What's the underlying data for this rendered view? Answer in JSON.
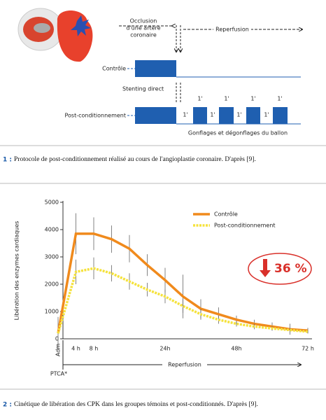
{
  "figure1": {
    "occlusion": [
      "Occlusion",
      "d'une artère",
      "coronaire"
    ],
    "reperfusion": "Reperfusion",
    "control": "Contrôle",
    "stenting": "Stenting direct",
    "postconditioning": "Post-conditionnement",
    "inflation_labels": [
      "1'",
      "1'",
      "1'",
      "1'"
    ],
    "deflation_labels": [
      "1'",
      "1'",
      "1'",
      "1'"
    ],
    "balloon": "Gonflages et dégonflages du ballon",
    "caption_label": "1 :",
    "caption": "Protocole de post-conditionnement réalisé au cours de l'angioplastie coronaire. D'après [9]."
  },
  "chart_data": {
    "type": "line",
    "ylabel": "Libération des enzymes cardiaques",
    "categories": [
      "Adm",
      "4 h",
      "8 h",
      null,
      null,
      null,
      "24h",
      null,
      null,
      null,
      "48h",
      null,
      null,
      null,
      "72 h"
    ],
    "ylim": [
      0,
      5000
    ],
    "yticks": [
      0,
      1000,
      2000,
      3000,
      4000,
      5000
    ],
    "series": [
      {
        "name": "Contrôle",
        "color": "#f08a1c",
        "values": [
          200,
          3850,
          3850,
          3650,
          3300,
          2700,
          2150,
          1550,
          1100,
          900,
          700,
          550,
          450,
          350,
          300
        ],
        "errors": [
          600,
          750,
          600,
          500,
          500,
          400,
          450,
          800,
          350,
          250,
          150,
          150,
          150,
          200,
          100
        ]
      },
      {
        "name": "Post-conditionnement",
        "color": "#f5e23c",
        "values": [
          200,
          2450,
          2580,
          2400,
          2100,
          1800,
          1550,
          1200,
          900,
          700,
          550,
          450,
          380,
          320,
          260
        ],
        "errors": [
          0,
          450,
          400,
          300,
          300,
          250,
          250,
          250,
          200,
          150,
          100,
          100,
          80,
          80,
          60
        ]
      }
    ],
    "annotation": "36 %",
    "reperfusion": "Reperfusion",
    "ptca": "PTCA*"
  },
  "figure2": {
    "caption_label": "2 :",
    "caption": "Cinétique de libération des CPK dans les groupes témoins et post-conditionnés. D'après [9]."
  }
}
